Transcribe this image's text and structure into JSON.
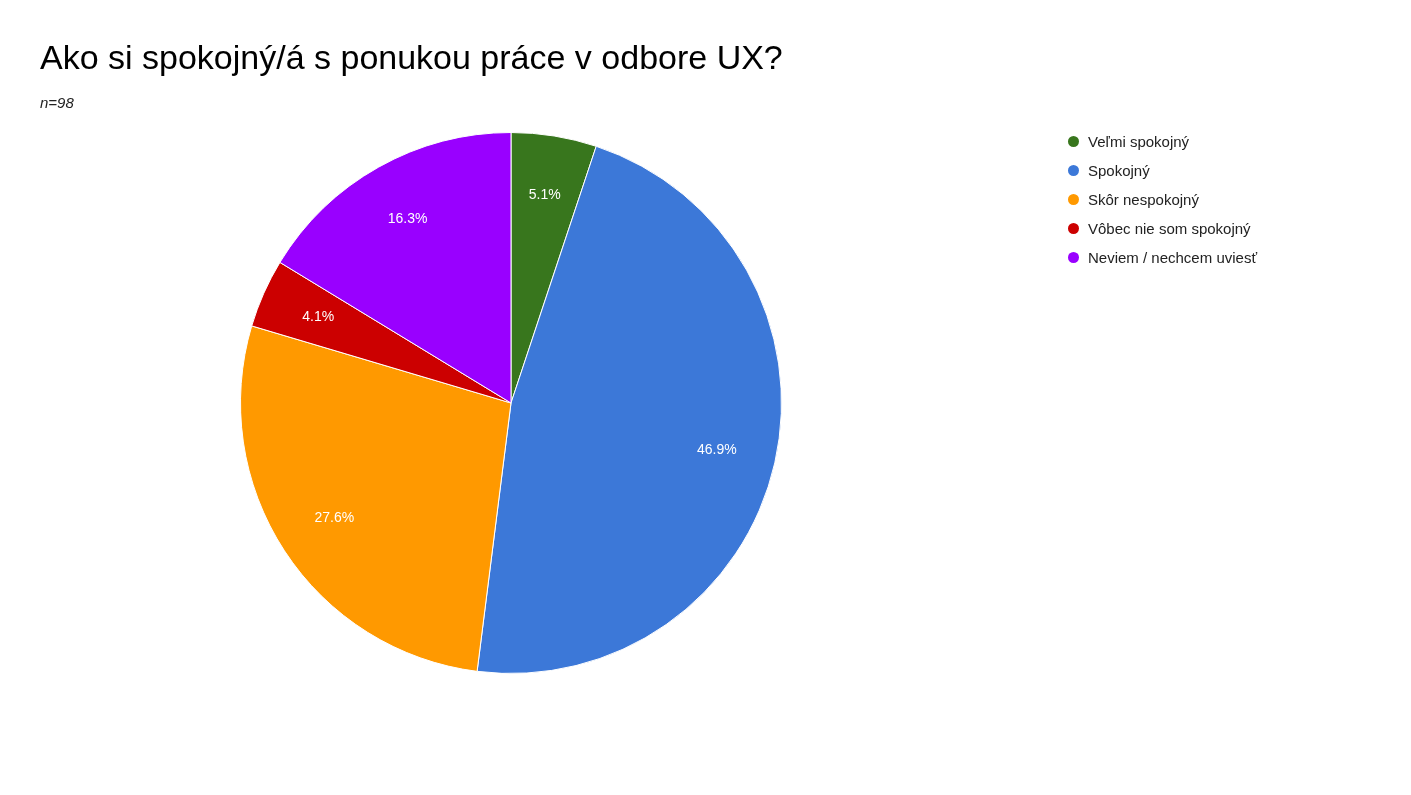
{
  "chart_data": {
    "type": "pie",
    "title": "Ako si spokojný/á s ponukou práce v odbore UX?",
    "subtitle": "n=98",
    "categories": [
      "Veľmi spokojný",
      "Spokojný",
      "Skôr nespokojný",
      "Vôbec nie som spokojný",
      "Neviem / nechcem uviesť"
    ],
    "values": [
      5.1,
      46.9,
      27.6,
      4.1,
      16.3
    ],
    "colors": [
      "#38761d",
      "#3c78d8",
      "#ff9900",
      "#cc0000",
      "#9900ff"
    ],
    "value_labels": [
      "5.1%",
      "46.9%",
      "27.6%",
      "4.1%",
      "16.3%"
    ],
    "legend": "top right"
  }
}
